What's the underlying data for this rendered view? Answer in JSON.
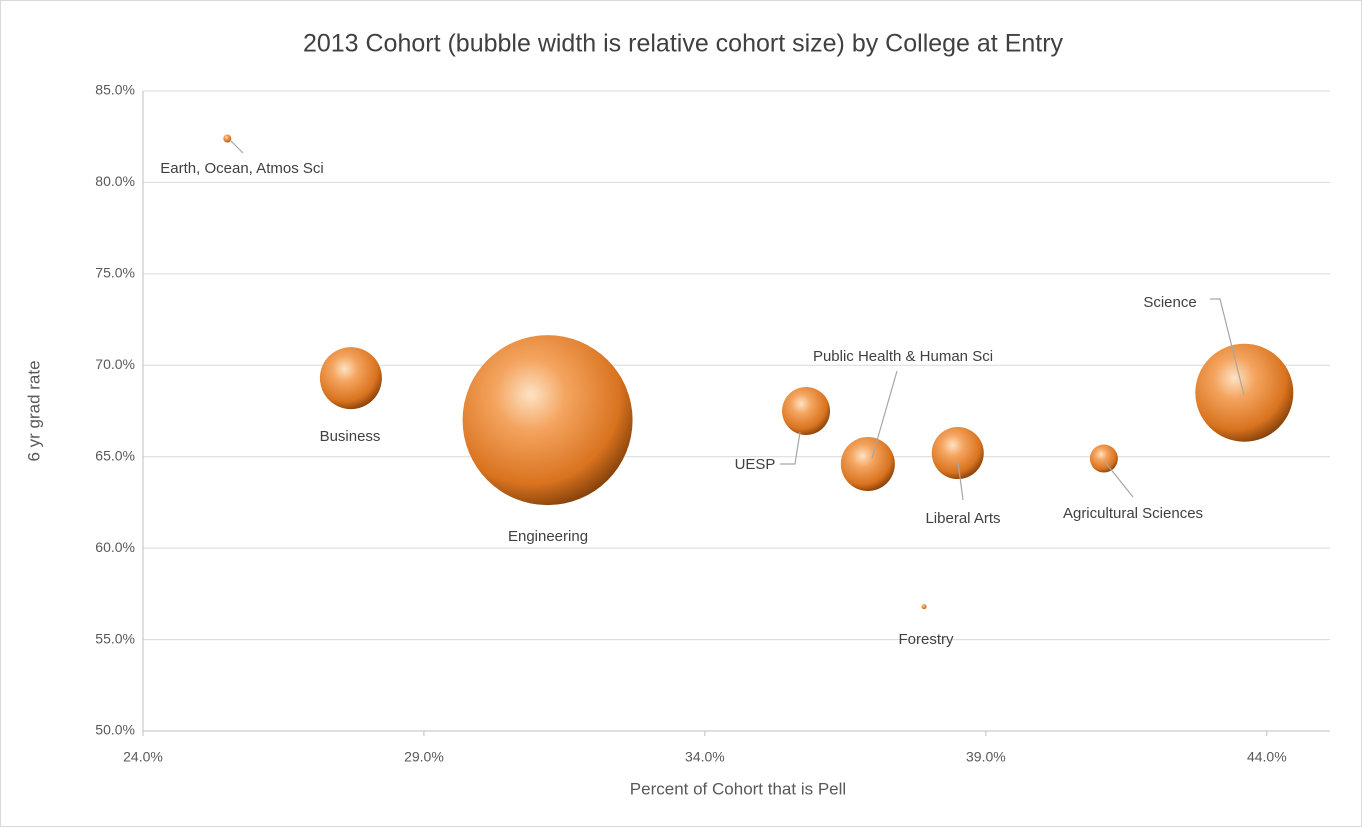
{
  "chart_data": {
    "type": "bubble",
    "title": "2013 Cohort (bubble width is relative cohort size) by College at Entry",
    "x_label": "Percent of Cohort that is Pell",
    "y_label": "6 yr grad rate",
    "labels": [
      "Earth, Ocean, Atmos Sci",
      "Business",
      "Engineering",
      "UESP",
      "Public Health & Human Sci",
      "Liberal Arts",
      "Forestry",
      "Agricultural Sciences",
      "Science"
    ],
    "x": [
      25.5,
      27.7,
      31.2,
      35.8,
      36.9,
      38.5,
      37.9,
      41.1,
      43.6
    ],
    "values": [
      82.4,
      69.3,
      67.0,
      67.5,
      64.6,
      65.2,
      56.8,
      64.9,
      68.5
    ],
    "sizes": [
      8,
      62,
      170,
      48,
      54,
      52,
      5,
      28,
      98
    ],
    "color": "#ed7d31",
    "xlim": [
      24,
      45
    ],
    "ylim": [
      50,
      85
    ],
    "xticks": [
      {
        "value": 24,
        "label": "24.0%"
      },
      {
        "value": 29,
        "label": "29.0%"
      },
      {
        "value": 34,
        "label": "34.0%"
      },
      {
        "value": 39,
        "label": "39.0%"
      },
      {
        "value": 44,
        "label": "44.0%"
      }
    ],
    "yticks": [
      {
        "value": 50,
        "label": "50.0%"
      },
      {
        "value": 55,
        "label": "55.0%"
      },
      {
        "value": 60,
        "label": "60.0%"
      },
      {
        "value": 65,
        "label": "65.0%"
      },
      {
        "value": 70,
        "label": "70.0%"
      },
      {
        "value": 75,
        "label": "75.0%"
      },
      {
        "value": 80,
        "label": "80.0%"
      },
      {
        "value": 85,
        "label": "85.0%"
      }
    ],
    "grid": true
  }
}
